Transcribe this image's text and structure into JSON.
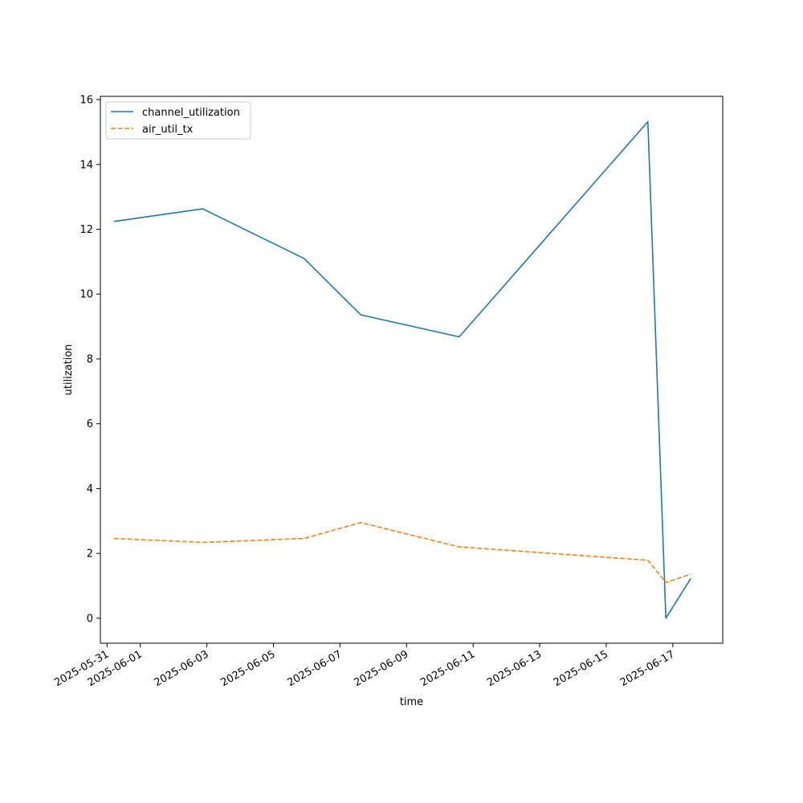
{
  "chart_data": {
    "type": "line",
    "xlabel": "time",
    "ylabel": "utilization",
    "x_ticks": [
      "2025-05-31",
      "2025-06-01",
      "2025-06-03",
      "2025-06-05",
      "2025-06-07",
      "2025-06-09",
      "2025-06-11",
      "2025-06-13",
      "2025-06-15",
      "2025-06-17"
    ],
    "y_ticks": [
      0,
      2,
      4,
      6,
      8,
      10,
      12,
      14,
      16
    ],
    "xlim": [
      "2025-05-30T19:12",
      "2025-06-18T12:00"
    ],
    "ylim": [
      -0.77,
      16.1
    ],
    "grid": false,
    "legend_position": "top-left",
    "series": [
      {
        "name": "channel_utilization",
        "color": "#1f77b4",
        "style": "solid",
        "points": [
          {
            "x": "2025-05-31T05:00",
            "y": 12.24
          },
          {
            "x": "2025-06-02T21:00",
            "y": 12.63
          },
          {
            "x": "2025-06-05T22:00",
            "y": 11.1
          },
          {
            "x": "2025-06-07T15:00",
            "y": 9.36
          },
          {
            "x": "2025-06-10T14:00",
            "y": 8.68
          },
          {
            "x": "2025-06-16T06:00",
            "y": 15.32
          },
          {
            "x": "2025-06-16T19:00",
            "y": 0.0
          },
          {
            "x": "2025-06-17T13:00",
            "y": 1.23
          }
        ]
      },
      {
        "name": "air_util_tx",
        "color": "#ff7f0e",
        "style": "dashed",
        "points": [
          {
            "x": "2025-05-31T05:00",
            "y": 2.46
          },
          {
            "x": "2025-06-02T21:00",
            "y": 2.34
          },
          {
            "x": "2025-06-05T22:00",
            "y": 2.46
          },
          {
            "x": "2025-06-07T15:00",
            "y": 2.95
          },
          {
            "x": "2025-06-10T14:00",
            "y": 2.2
          },
          {
            "x": "2025-06-16T06:00",
            "y": 1.79
          },
          {
            "x": "2025-06-16T19:00",
            "y": 1.1
          },
          {
            "x": "2025-06-17T13:00",
            "y": 1.36
          }
        ]
      }
    ]
  }
}
